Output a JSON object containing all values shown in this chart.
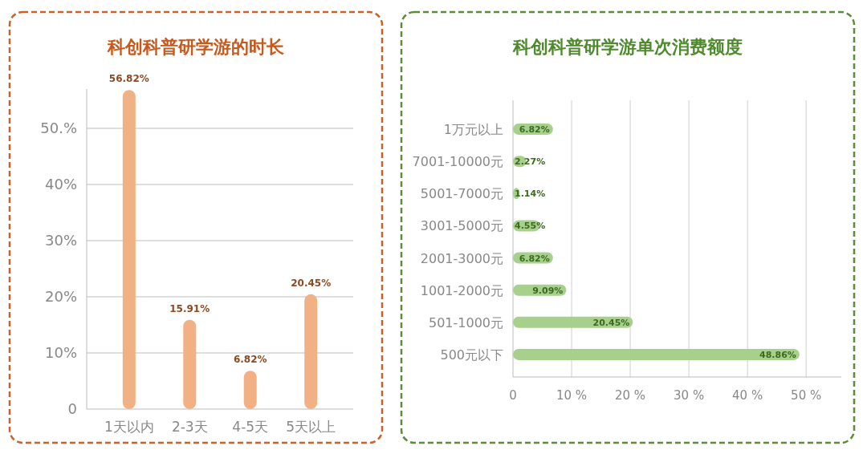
{
  "chart_data": [
    {
      "type": "bar",
      "title": "科创科普研学游的时长",
      "categories": [
        "1天以内",
        "2-3天",
        "4-5天",
        "5天以上"
      ],
      "values": [
        56.82,
        15.91,
        6.82,
        20.45
      ],
      "value_labels": [
        "56.82%",
        "15.91%",
        "6.82%",
        "20.45%"
      ],
      "color": "#f2b184",
      "ylim": [
        0,
        57
      ],
      "yticks": [
        0,
        {
          "value": 10,
          "label": "10%"
        },
        {
          "value": 20,
          "label": "20%"
        },
        {
          "value": 30,
          "label": "30%"
        },
        {
          "value": 40,
          "label": "40%"
        },
        {
          "value": 50,
          "label": "50.%"
        }
      ],
      "grid": "y"
    },
    {
      "type": "bar",
      "orientation": "horizontal",
      "title": "科创科普研学游单次消费额度",
      "categories": [
        "1万元以上",
        "7001-10000元",
        "5001-7000元",
        "3001-5000元",
        "2001-3000元",
        "1001-2000元",
        "501-1000元",
        "500元以下"
      ],
      "values": [
        6.82,
        2.27,
        1.14,
        4.55,
        6.82,
        9.09,
        20.45,
        48.86
      ],
      "value_labels": [
        "6.82%",
        "2.27%",
        "1.14%",
        "4.55%",
        "6.82%",
        "9.09%",
        "20.45%",
        "48.86%"
      ],
      "color": "#a8d08d",
      "xlim": [
        0,
        56
      ],
      "xticks": [
        0,
        {
          "value": 10,
          "label": "10 %"
        },
        {
          "value": 20,
          "label": "20 %"
        },
        {
          "value": 30,
          "label": "30 %"
        },
        {
          "value": 40,
          "label": "40 %"
        },
        {
          "value": 50,
          "label": "50 %"
        }
      ],
      "grid": "x"
    }
  ]
}
